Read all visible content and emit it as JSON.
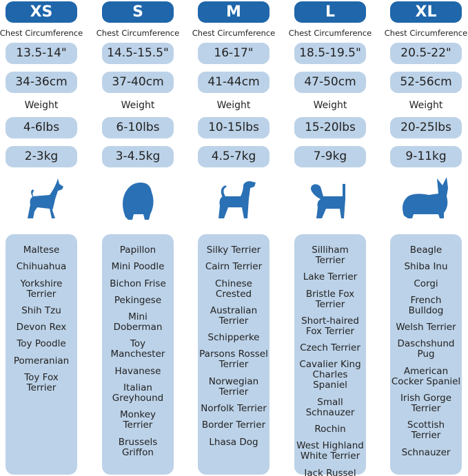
{
  "chest_label": "Chest Circumference",
  "weight_label": "Weight",
  "colors": {
    "header": "#1f66aa",
    "pill": "#bcd2e8",
    "silhouette": "#2a70b4"
  },
  "sizes": [
    {
      "name": "XS",
      "chest_in": "13.5-14\"",
      "chest_cm": "34-36cm",
      "weight_lbs": "4-6lbs",
      "weight_kg": "2-3kg",
      "icon": "chihuahua-silhouette-icon",
      "breeds": [
        "Maltese",
        "Chihuahua",
        "Yorkshire\nTerrier",
        "Shih Tzu",
        "Devon Rex",
        "Toy Poodle",
        "Pomeranian",
        "Toy Fox\nTerrier"
      ]
    },
    {
      "name": "S",
      "chest_in": "14.5-15.5\"",
      "chest_cm": "37-40cm",
      "weight_lbs": "6-10lbs",
      "weight_kg": "3-4.5kg",
      "icon": "pomeranian-silhouette-icon",
      "breeds": [
        "Papillon",
        "Mini Poodle",
        "Bichon Frise",
        "Pekingese",
        "Mini\nDoberman",
        "Toy\nManchester",
        "Havanese",
        "Italian\nGreyhound",
        "Monkey\nTerrier",
        "Brussels\nGriffon"
      ]
    },
    {
      "name": "M",
      "chest_in": "16-17\"",
      "chest_cm": "41-44cm",
      "weight_lbs": "10-15lbs",
      "weight_kg": "4.5-7kg",
      "icon": "terrier-silhouette-icon",
      "breeds": [
        "Silky Terrier",
        "Cairn Terrier",
        "Chinese\nCrested",
        "Australian\nTerrier",
        "Schipperke",
        "Parsons Rossel\nTerrier",
        "Norwegian\nTerrier",
        "Norfolk Terrier",
        "Border Terrier",
        "Lhasa Dog"
      ]
    },
    {
      "name": "L",
      "chest_in": "18.5-19.5\"",
      "chest_cm": "47-50cm",
      "weight_lbs": "15-20lbs",
      "weight_kg": "7-9kg",
      "icon": "beagle-silhouette-icon",
      "breeds": [
        "Silliham\nTerrier",
        "Lake Terrier",
        "Bristle Fox\nTerrier",
        "Short-haired\nFox Terrier",
        "Czech Terrier",
        "Cavalier King\nCharles Spaniel",
        "Small\nSchnauzer",
        "Rochin",
        "West Highland\nWhite Terrier",
        "Jack Russel"
      ]
    },
    {
      "name": "XL",
      "chest_in": "20.5-22\"",
      "chest_cm": "52-56cm",
      "weight_lbs": "20-25lbs",
      "weight_kg": "9-11kg",
      "icon": "corgi-silhouette-icon",
      "breeds": [
        "Beagle",
        "Shiba Inu",
        "Corgi",
        "French\nBulldog",
        "Welsh Terrier",
        "Daschshund\nPug",
        "American\nCocker Spaniel",
        "Irish Gorge\nTerrier",
        "Scottish\nTerrier",
        "Schnauzer"
      ]
    }
  ]
}
